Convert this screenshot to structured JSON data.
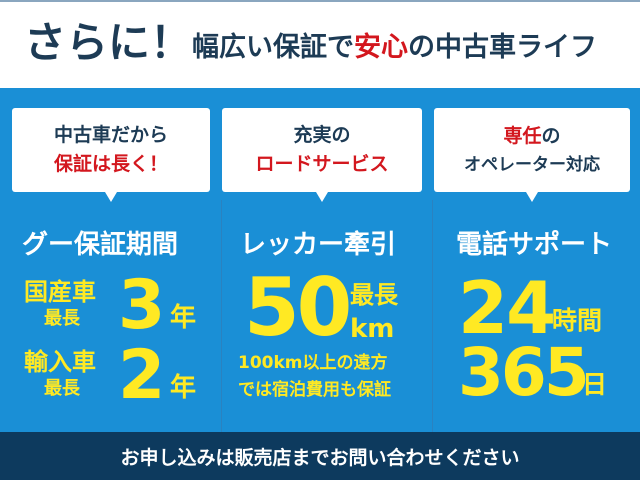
{
  "colors": {
    "blue": "#1a8fd6",
    "navy": "#0d3a5e",
    "yellow": "#ffe923",
    "red": "#d3171e",
    "dark_text": "#1d3b55"
  },
  "header": {
    "lead": "さらに！",
    "title_pre": "幅広い保証で",
    "title_em": "安心",
    "title_post": "の中古車ライフ"
  },
  "bubbles": [
    {
      "line1": "中古車だから",
      "line2": "保証は長く！"
    },
    {
      "line1": "充実の",
      "line2": "ロードサービス"
    },
    {
      "line1_em": "専任",
      "line1_post": "の",
      "line2": "オペレーター対応"
    }
  ],
  "col1": {
    "title": "グー保証期間",
    "rows": [
      {
        "label": "国産車",
        "sub": "最長",
        "num": "3",
        "unit": "年"
      },
      {
        "label": "輸入車",
        "sub": "最長",
        "num": "2",
        "unit": "年"
      }
    ]
  },
  "col2": {
    "title": "レッカー牽引",
    "num": "50",
    "pre": "最長",
    "unit": "km",
    "note1": "100km以上の遠方",
    "note2": "では宿泊費用も保証"
  },
  "col3": {
    "title": "電話サポート",
    "num1": "24",
    "unit1": "時間",
    "num2": "365",
    "unit2": "日"
  },
  "footer": {
    "text": "お申し込みは販売店までお問い合わせください"
  }
}
